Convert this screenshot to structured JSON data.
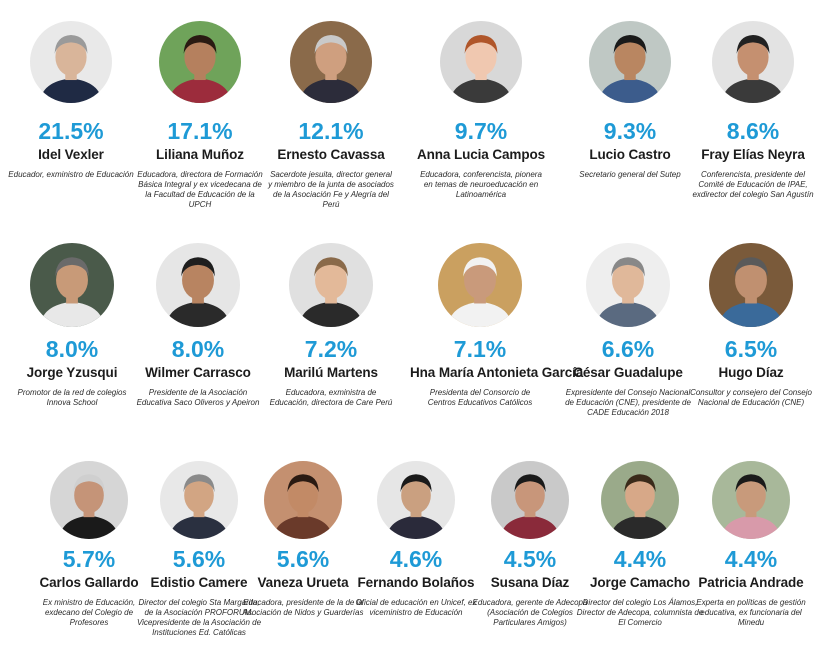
{
  "people": [
    {
      "percent": "21.5%",
      "name": "Idel Vexler",
      "description": "Educador, exministro de Educación"
    },
    {
      "percent": "17.1%",
      "name": "Liliana Muñoz",
      "description": "Educadora, directora de Formación Básica Integral y ex vicedecana de la Facultad de Educación de la UPCH"
    },
    {
      "percent": "12.1%",
      "name": "Ernesto Cavassa",
      "description": "Sacerdote jesuita, director general y miembro de la junta de asociados de la Asociación Fe y Alegría del Perú"
    },
    {
      "percent": "9.7%",
      "name": "Anna Lucia Campos",
      "description": "Educadora, conferencista, pionera en temas de neuroeducación en Latinoamérica"
    },
    {
      "percent": "9.3%",
      "name": "Lucio Castro",
      "description": "Secretario general del Sutep"
    },
    {
      "percent": "8.6%",
      "name": "Fray Elías Neyra",
      "description": "Conferencista, presidente del Comité de Educación de IPAE, exdirector del colegio San Agustín"
    },
    {
      "percent": "8.0%",
      "name": "Jorge Yzusqui",
      "description": "Promotor de la red de colegios Innova School"
    },
    {
      "percent": "8.0%",
      "name": "Wilmer Carrasco",
      "description": "Presidente de la Asociación Educativa Saco Oliveros y Apeiron"
    },
    {
      "percent": "7.2%",
      "name": "Marilú Martens",
      "description": "Educadora, exministra de Educación, directora de Care Perú"
    },
    {
      "percent": "7.1%",
      "name": "Hna María Antonieta García",
      "description": "Presidenta del Consorcio de Centros Educativos Católicos"
    },
    {
      "percent": "6.6%",
      "name": "César Guadalupe",
      "description": "Expresidente del Consejo Nacional de Educación (CNE), presidente de CADE Educación 2018"
    },
    {
      "percent": "6.5%",
      "name": "Hugo Díaz",
      "description": "Consultor y consejero del Consejo Nacional de Educación (CNE)"
    },
    {
      "percent": "5.7%",
      "name": "Carlos Gallardo",
      "description": "Ex ministro de Educación, exdecano del Colegio de Profesores"
    },
    {
      "percent": "5.6%",
      "name": "Edistio Camere",
      "description": "Director del colegio Sta Margarita, de la Asociación PROFORUM. Vicepresidente de la Asociación de Instituciones Ed. Católicas"
    },
    {
      "percent": "5.6%",
      "name": "Vaneza Urueta",
      "description": "Educadora, presidente de la de la Asociación de Nidos y Guarderías"
    },
    {
      "percent": "4.6%",
      "name": "Fernando Bolaños",
      "description": "Oficial de educación en Unicef, ex viceministro de Educación"
    },
    {
      "percent": "4.5%",
      "name": "Susana Díaz",
      "description": "Educadora, gerente de Adecopa (Asociación de Colegios Particulares Amigos)"
    },
    {
      "percent": "4.4%",
      "name": "Jorge Camacho",
      "description": "Director del colegio Los Álamos, Director de Adecopa, columnista de El Comercio"
    },
    {
      "percent": "4.4%",
      "name": "Patricia Andrade",
      "description": "Experta en políticas de gestión educativa, ex funcionaria del Minedu"
    }
  ],
  "colors": {
    "accent": "#1e9ad6",
    "name_text": "#1c1c1c",
    "description_text": "#2b2b2b"
  }
}
